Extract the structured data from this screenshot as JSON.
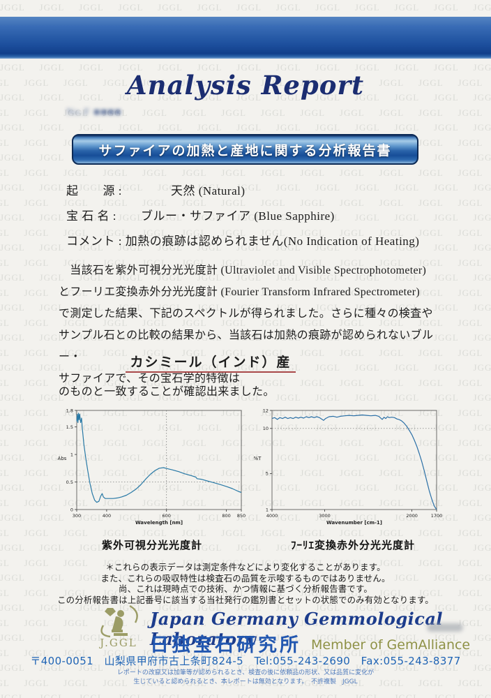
{
  "watermark": {
    "text": "JGGL"
  },
  "title": "Analysis Report",
  "report_no": "No.F ■■■■",
  "banner": {
    "text": "サファイアの加熱と産地に関する分析報告書"
  },
  "info_lines": [
    "起　　源 :　　　　天然 (Natural)",
    "宝 石 名 :　　ブルー・サファイア (Blue Sapphire)",
    "コメント : 加熱の痕跡は認められません(No Indication of Heating)"
  ],
  "paragraph_lines": [
    "　当該石を紫外可視分光光度計 (Ultraviolet and Visible Spectrophotometer)",
    "とフーリエ変換赤外分光光度計 (Fourier Transform Infrared Spectrometer)",
    "で測定した結果、下記のスペクトルが得られました。さらに種々の検査や",
    "サンプル石との比較の結果から、当該石は加熱の痕跡が認められないブルー・",
    "サファイアで、その宝石学的特徴は"
  ],
  "origin_line": "カシミール（インド）産",
  "confirm_line": "のものと一致することが確認出来ました。",
  "chart_captions": [
    "紫外可視分光光度計",
    "ﾌｰﾘｴ変換赤外分光光度計"
  ],
  "notes": [
    "＊これらの表示データは測定条件などにより変化することがあります。",
    "また、これらの吸収特性は検査石の品質を示唆するものではありません。",
    "尚、これは現時点での技術、かつ情報に基づく分析報告書です。",
    "この分析報告書は上記番号に該当する当社発行の鑑別書とセットの状態でのみ有効となります。"
  ],
  "footer": {
    "logo_text": "J.GGL",
    "lab_name_en": "Japan Germany Gemmological Laboratory",
    "lab_name_jp": "日独宝石研究所",
    "membership": "Member of GemAlliance",
    "address": "〒400-0051　山梨県甲府市古上条町824-5　Tel:055-243-2690　Fax:055-243-8377",
    "legal_lines": [
      "レポートの改竄又は加筆等が認められるとき、検査の後に依頼品の形状、又は品質に変化が",
      "生じていると認められるとき、本レポートは無効となります。　不許複製　JGGL"
    ]
  },
  "colors": {
    "title_navy": "#1b2d71",
    "banner_blue": "#2a63a9",
    "underline_red": "#a84848",
    "footer_blue": "#2257b0",
    "olive": "#8e9146"
  },
  "chart_data": [
    {
      "type": "line",
      "title": "紫外可視分光光度計",
      "xlabel": "Wavelength [nm]",
      "ylabel": "Abs",
      "ylim": [
        0,
        1.8
      ],
      "x_ticks": [
        300,
        400,
        600,
        800,
        850
      ],
      "y_ticks": [
        0,
        0.5,
        1,
        1.5,
        1.8
      ],
      "x_map": [
        [
          300,
          0
        ],
        [
          850,
          1
        ]
      ],
      "dotted_x": [
        600
      ],
      "dotted_y": [
        0.5
      ],
      "line_color": "#2879a6",
      "points": [
        [
          300,
          1.6
        ],
        [
          302,
          1.73
        ],
        [
          304,
          1.58
        ],
        [
          306,
          1.75
        ],
        [
          308,
          1.63
        ],
        [
          310,
          1.73
        ],
        [
          313,
          1.58
        ],
        [
          316,
          1.66
        ],
        [
          319,
          1.45
        ],
        [
          324,
          1.18
        ],
        [
          330,
          0.94
        ],
        [
          337,
          0.7
        ],
        [
          344,
          0.48
        ],
        [
          352,
          0.29
        ],
        [
          360,
          0.17
        ],
        [
          367,
          0.13
        ],
        [
          374,
          0.15
        ],
        [
          380,
          0.24
        ],
        [
          385,
          0.29
        ],
        [
          389,
          0.23
        ],
        [
          395,
          0.2
        ],
        [
          408,
          0.2
        ],
        [
          422,
          0.2
        ],
        [
          436,
          0.21
        ],
        [
          450,
          0.23
        ],
        [
          466,
          0.26
        ],
        [
          482,
          0.31
        ],
        [
          498,
          0.37
        ],
        [
          514,
          0.45
        ],
        [
          530,
          0.55
        ],
        [
          546,
          0.64
        ],
        [
          562,
          0.71
        ],
        [
          576,
          0.75
        ],
        [
          590,
          0.76
        ],
        [
          604,
          0.74
        ],
        [
          620,
          0.72
        ],
        [
          640,
          0.69
        ],
        [
          660,
          0.65
        ],
        [
          680,
          0.62
        ],
        [
          698,
          0.59
        ],
        [
          702,
          0.56
        ],
        [
          716,
          0.55
        ],
        [
          736,
          0.52
        ],
        [
          756,
          0.49
        ],
        [
          776,
          0.46
        ],
        [
          800,
          0.42
        ],
        [
          820,
          0.38
        ],
        [
          840,
          0.33
        ],
        [
          850,
          0.31
        ]
      ]
    },
    {
      "type": "line",
      "title": "ﾌｰﾘｴ変換赤外分光光度計",
      "xlabel": "Wavenumber [cm-1]",
      "ylabel": "%T",
      "ylim": [
        1,
        12
      ],
      "x_ticks": [
        4000,
        3000,
        2000,
        1700
      ],
      "y_ticks": [
        1,
        5,
        10,
        12
      ],
      "x_map": [
        [
          4000,
          0
        ],
        [
          3000,
          0.32
        ],
        [
          2000,
          0.85
        ],
        [
          1700,
          1
        ]
      ],
      "dotted_x": [],
      "dotted_y": [
        10
      ],
      "line_color": "#2a6fa6",
      "points": [
        [
          4000,
          11.1
        ],
        [
          3950,
          11.2
        ],
        [
          3900,
          11.0
        ],
        [
          3850,
          11.2
        ],
        [
          3800,
          11.1
        ],
        [
          3750,
          11.25
        ],
        [
          3700,
          11.1
        ],
        [
          3650,
          11.2
        ],
        [
          3600,
          11.1
        ],
        [
          3550,
          11.25
        ],
        [
          3500,
          11.15
        ],
        [
          3450,
          11.25
        ],
        [
          3400,
          11.15
        ],
        [
          3350,
          11.3
        ],
        [
          3300,
          11.2
        ],
        [
          3250,
          11.3
        ],
        [
          3200,
          11.2
        ],
        [
          3150,
          11.3
        ],
        [
          3100,
          11.2
        ],
        [
          3060,
          11.05
        ],
        [
          3020,
          10.9
        ],
        [
          2990,
          11.1
        ],
        [
          2950,
          11.3
        ],
        [
          2900,
          11.35
        ],
        [
          2860,
          11.25
        ],
        [
          2820,
          11.35
        ],
        [
          2770,
          11.4
        ],
        [
          2720,
          11.45
        ],
        [
          2670,
          11.4
        ],
        [
          2620,
          11.45
        ],
        [
          2570,
          11.5
        ],
        [
          2520,
          11.45
        ],
        [
          2470,
          11.4
        ],
        [
          2420,
          11.45
        ],
        [
          2380,
          11.35
        ],
        [
          2340,
          11.0
        ],
        [
          2320,
          11.25
        ],
        [
          2300,
          11.1
        ],
        [
          2280,
          11.3
        ],
        [
          2260,
          11.2
        ],
        [
          2230,
          11.25
        ],
        [
          2200,
          11.2
        ],
        [
          2170,
          11.05
        ],
        [
          2150,
          11.0
        ],
        [
          2120,
          10.85
        ],
        [
          2090,
          10.6
        ],
        [
          2060,
          10.25
        ],
        [
          2030,
          9.8
        ],
        [
          2000,
          9.3
        ],
        [
          1970,
          8.7
        ],
        [
          1940,
          8.0
        ],
        [
          1910,
          7.2
        ],
        [
          1880,
          6.3
        ],
        [
          1850,
          5.3
        ],
        [
          1820,
          4.2
        ],
        [
          1790,
          3.1
        ],
        [
          1760,
          2.2
        ],
        [
          1730,
          1.4
        ],
        [
          1700,
          1.0
        ]
      ]
    }
  ]
}
